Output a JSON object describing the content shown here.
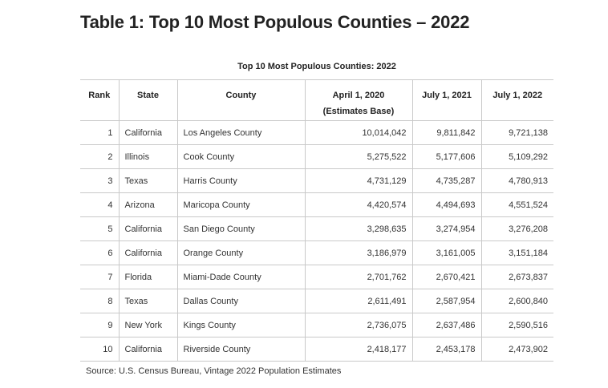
{
  "heading": "Table 1: Top 10 Most Populous Counties – 2022",
  "table": {
    "caption": "Top 10 Most Populous Counties: 2022",
    "columns": {
      "rank": "Rank",
      "state": "State",
      "county": "County",
      "apr2020_line1": "April 1, 2020",
      "apr2020_line2": "(Estimates Base)",
      "jul2021": "July 1, 2021",
      "jul2022": "July 1, 2022"
    },
    "rows": [
      {
        "rank": "1",
        "state": "California",
        "county": "Los Angeles County",
        "apr2020": "10,014,042",
        "jul2021": "9,811,842",
        "jul2022": "9,721,138"
      },
      {
        "rank": "2",
        "state": "Illinois",
        "county": "Cook County",
        "apr2020": "5,275,522",
        "jul2021": "5,177,606",
        "jul2022": "5,109,292"
      },
      {
        "rank": "3",
        "state": "Texas",
        "county": "Harris County",
        "apr2020": "4,731,129",
        "jul2021": "4,735,287",
        "jul2022": "4,780,913"
      },
      {
        "rank": "4",
        "state": "Arizona",
        "county": "Maricopa County",
        "apr2020": "4,420,574",
        "jul2021": "4,494,693",
        "jul2022": "4,551,524"
      },
      {
        "rank": "5",
        "state": "California",
        "county": "San Diego County",
        "apr2020": "3,298,635",
        "jul2021": "3,274,954",
        "jul2022": "3,276,208"
      },
      {
        "rank": "6",
        "state": "California",
        "county": "Orange County",
        "apr2020": "3,186,979",
        "jul2021": "3,161,005",
        "jul2022": "3,151,184"
      },
      {
        "rank": "7",
        "state": "Florida",
        "county": "Miami-Dade County",
        "apr2020": "2,701,762",
        "jul2021": "2,670,421",
        "jul2022": "2,673,837"
      },
      {
        "rank": "8",
        "state": "Texas",
        "county": "Dallas County",
        "apr2020": "2,611,491",
        "jul2021": "2,587,954",
        "jul2022": "2,600,840"
      },
      {
        "rank": "9",
        "state": "New York",
        "county": "Kings County",
        "apr2020": "2,736,075",
        "jul2021": "2,637,486",
        "jul2022": "2,590,516"
      },
      {
        "rank": "10",
        "state": "California",
        "county": "Riverside County",
        "apr2020": "2,418,177",
        "jul2021": "2,453,178",
        "jul2022": "2,473,902"
      }
    ]
  },
  "source": "Source: U.S. Census Bureau, Vintage 2022 Population Estimates",
  "colors": {
    "text": "#222222",
    "grid": "#c9c9c9",
    "background": "#ffffff"
  }
}
